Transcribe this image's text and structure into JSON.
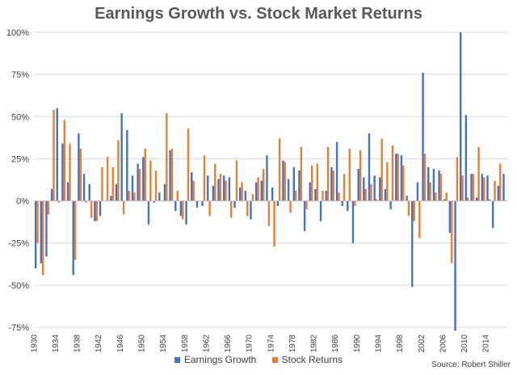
{
  "chart_data": {
    "type": "bar",
    "title": "Earnings Growth vs. Stock Market Returns",
    "xlabel": "",
    "ylabel": "",
    "ylim": [
      -0.75,
      1.0
    ],
    "yticks": [
      "100%",
      "75%",
      "50%",
      "25%",
      "0%",
      "-25%",
      "-50%",
      "-75%"
    ],
    "ytick_values": [
      1.0,
      0.75,
      0.5,
      0.25,
      0,
      -0.25,
      -0.5,
      -0.75
    ],
    "x_start": 1930,
    "x_end": 2017,
    "xtick_labels": [
      "1930",
      "1934",
      "1938",
      "1942",
      "1946",
      "1950",
      "1954",
      "1958",
      "1962",
      "1966",
      "1970",
      "1974",
      "1978",
      "1982",
      "1986",
      "1990",
      "1994",
      "1998",
      "2002",
      "2006",
      "2010",
      "2014"
    ],
    "grid": true,
    "legend_position": "bottom",
    "colors": {
      "earnings": "#4472C4",
      "returns": "#ED7D31"
    },
    "series": [
      {
        "name": "Earnings Growth",
        "values": [
          -0.4,
          -0.37,
          -0.33,
          0.07,
          0.55,
          0.34,
          0.11,
          -0.44,
          0.4,
          0.16,
          0.1,
          -0.12,
          -0.09,
          0.0,
          0.03,
          0.1,
          0.52,
          0.42,
          0.15,
          0.22,
          0.26,
          -0.14,
          -0.01,
          0.05,
          0.1,
          0.3,
          -0.06,
          -0.09,
          -0.14,
          0.17,
          -0.04,
          -0.03,
          0.15,
          0.09,
          0.13,
          0.15,
          0.14,
          -0.04,
          0.08,
          0.06,
          -0.11,
          0.11,
          0.12,
          0.27,
          0.08,
          -0.03,
          0.24,
          0.13,
          0.2,
          0.18,
          -0.18,
          0.11,
          0.07,
          -0.12,
          0.06,
          0.2,
          0.35,
          -0.03,
          -0.06,
          -0.25,
          0.19,
          0.14,
          0.4,
          0.15,
          0.14,
          0.07,
          -0.05,
          0.28,
          0.27,
          0.03,
          -0.51,
          0.11,
          0.76,
          0.2,
          0.19,
          0.18,
          0.01,
          -0.19,
          -0.77,
          1.0,
          0.51,
          0.16,
          0.02,
          0.16,
          0.15,
          -0.16,
          0.09,
          0.16
        ]
      },
      {
        "name": "Stock Returns",
        "values": [
          -0.25,
          -0.44,
          -0.08,
          0.54,
          -0.01,
          0.48,
          0.34,
          -0.35,
          0.31,
          -0.01,
          -0.1,
          -0.12,
          0.2,
          0.26,
          0.2,
          0.36,
          -0.08,
          0.06,
          0.05,
          0.19,
          0.31,
          0.24,
          0.18,
          0.0,
          0.52,
          0.31,
          0.06,
          -0.11,
          0.43,
          0.12,
          0.0,
          0.27,
          -0.09,
          0.22,
          0.16,
          0.12,
          -0.1,
          0.24,
          0.11,
          -0.09,
          0.04,
          0.14,
          0.19,
          -0.15,
          -0.27,
          0.37,
          0.23,
          -0.07,
          0.06,
          0.32,
          -0.05,
          0.21,
          0.22,
          0.06,
          0.32,
          0.18,
          0.05,
          0.16,
          0.31,
          -0.03,
          0.3,
          0.07,
          0.1,
          0.01,
          0.37,
          0.23,
          0.33,
          0.28,
          0.21,
          -0.09,
          -0.12,
          -0.22,
          0.28,
          0.11,
          0.05,
          0.16,
          0.05,
          -0.37,
          0.26,
          0.15,
          0.02,
          0.16,
          0.32,
          0.14,
          0.01,
          0.12,
          0.22,
          0.0
        ]
      }
    ]
  },
  "legend": {
    "earnings_label": "Earnings Growth",
    "returns_label": "Stock Returns"
  },
  "source_text": "Source: Robert Shiller"
}
